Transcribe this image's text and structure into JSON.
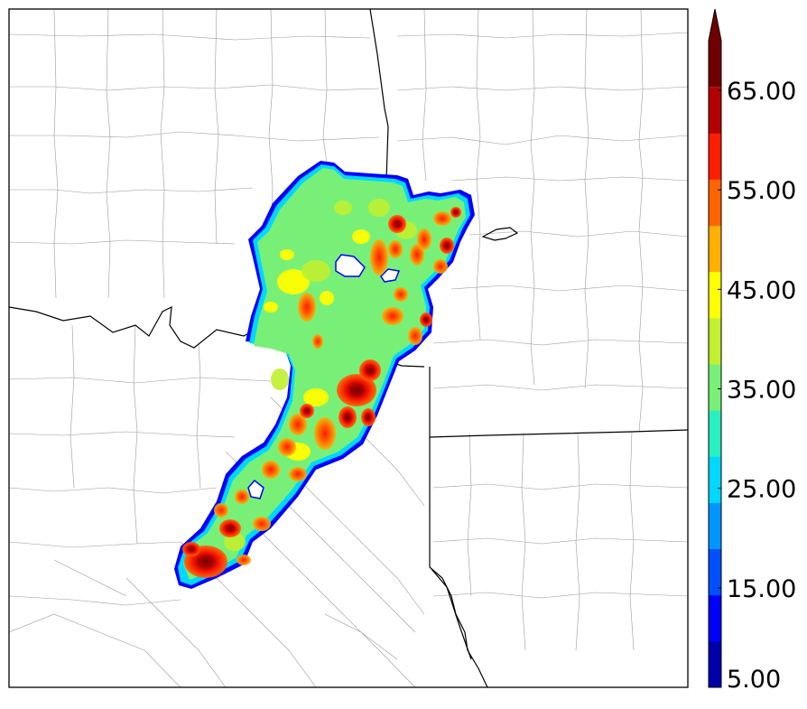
{
  "colorbar": {
    "tick_labels": [
      "5.00",
      "15.00",
      "25.00",
      "35.00",
      "45.00",
      "55.00",
      "65.00"
    ],
    "min": 5,
    "max": 70,
    "step": 5,
    "extend": "max",
    "colors": [
      "#0000a8",
      "#0000ff",
      "#0050ff",
      "#0096ff",
      "#00d8ff",
      "#28f0c0",
      "#78f078",
      "#c0f030",
      "#ffff00",
      "#ffb000",
      "#ff6400",
      "#ff1e00",
      "#b40000",
      "#700000"
    ]
  },
  "map": {
    "colors": {
      "county_lines": "#9a9a9a",
      "state_lines": "#000000",
      "frame": "#000000",
      "background": "#ffffff"
    }
  }
}
